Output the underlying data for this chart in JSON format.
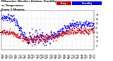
{
  "blue_color": "#0000ff",
  "red_color": "#cc0000",
  "bg_color": "#ffffff",
  "grid_color": "#bbbbbb",
  "title_text": "Milwaukee Weather Outdoor Humidity",
  "subtitle1": "vs Temperature",
  "subtitle2": "Every 5 Minutes",
  "legend_temp_label": "Temp",
  "legend_humidity_label": "Humidity",
  "marker_size": 1.5,
  "title_fontsize": 2.6,
  "tick_fontsize": 2.4,
  "ylim_humidity": [
    10,
    100
  ],
  "ylim_temp": [
    -10,
    80
  ],
  "yticks_right": [
    0,
    10,
    20,
    30,
    40,
    50,
    60,
    70
  ],
  "num_points": 288
}
